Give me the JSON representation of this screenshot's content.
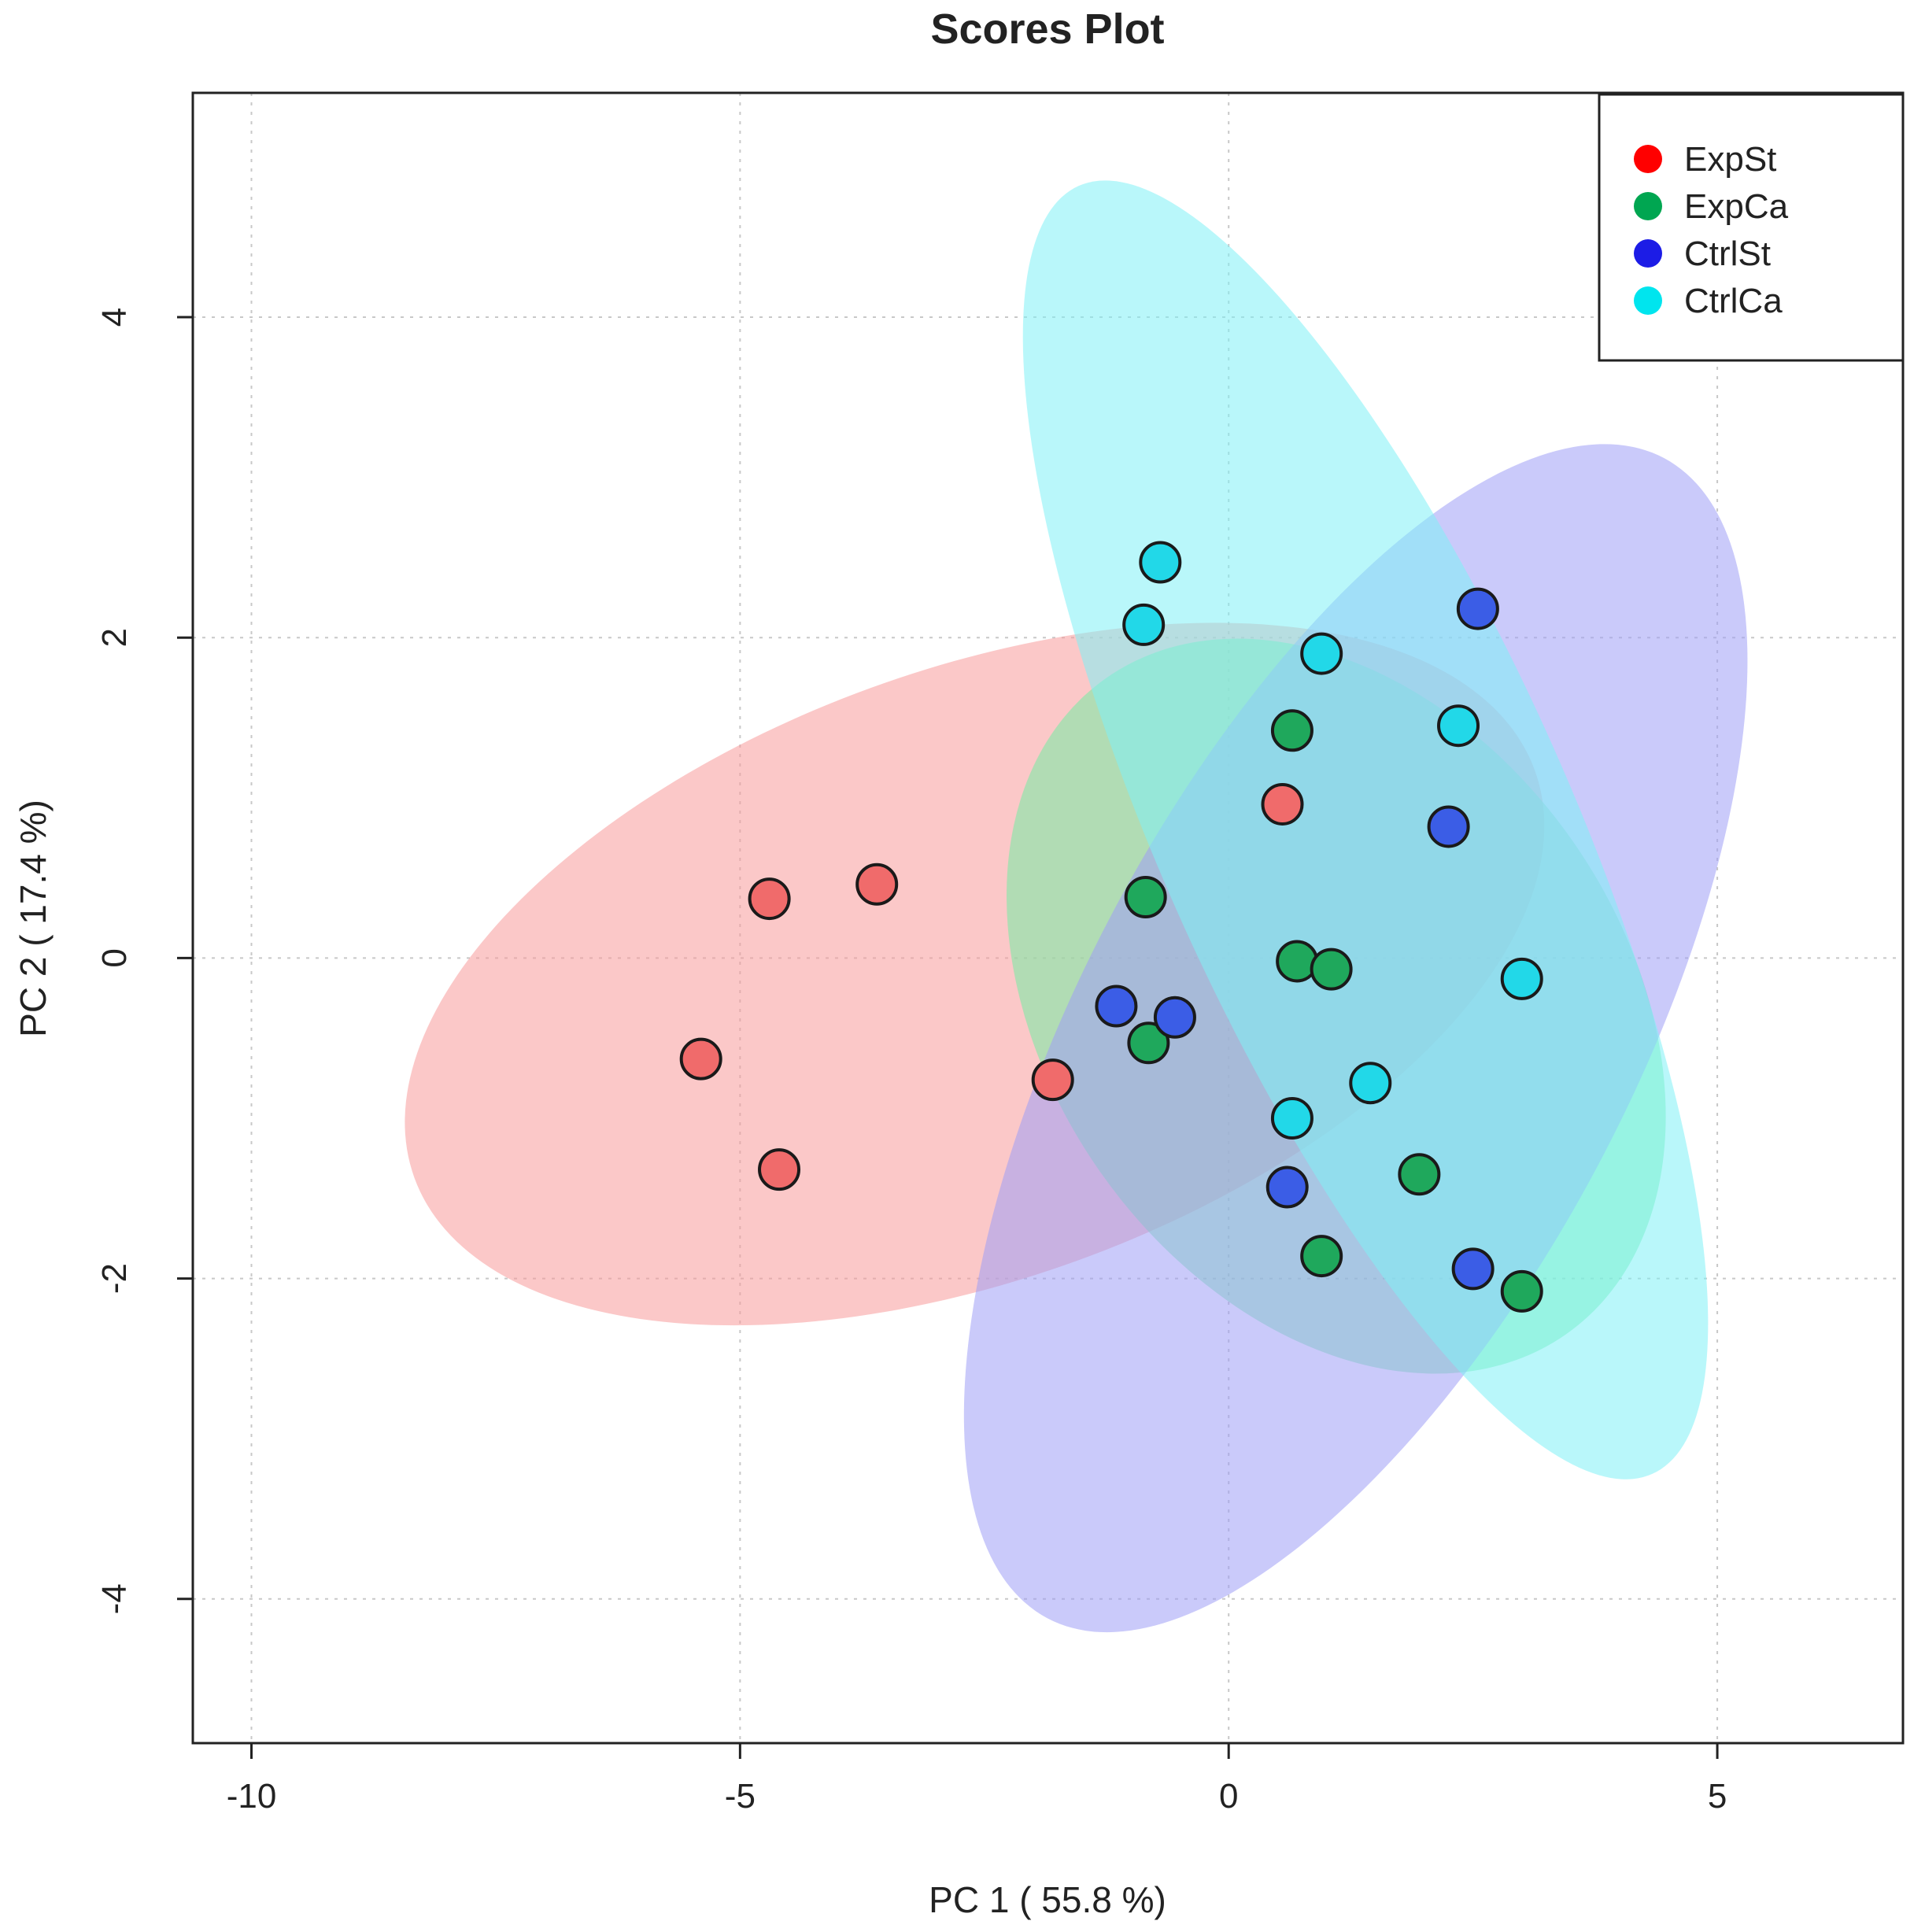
{
  "chart_data": {
    "type": "scatter",
    "title": "Scores Plot",
    "xlabel": "PC 1 ( 55.8 %)",
    "ylabel": "PC 2 ( 17.4 %)",
    "xlim": [
      -10.6,
      6.9
    ],
    "ylim": [
      -4.9,
      5.4
    ],
    "xticks": [
      -10,
      -5,
      0,
      5
    ],
    "yticks": [
      -4,
      -2,
      0,
      2,
      4
    ],
    "xtick_labels": [
      "-10",
      "-5",
      "0",
      "5"
    ],
    "ytick_labels": [
      "-4",
      "-2",
      "0",
      "2",
      "4"
    ],
    "grid": true,
    "legend_position": "top-right",
    "series": [
      {
        "name": "ExpSt",
        "color": "#ff0000",
        "point_color": "#f06b6b",
        "ellipse_color": "#f79b9b",
        "points": [
          [
            -4.7,
            0.37
          ],
          [
            -3.6,
            0.46
          ],
          [
            -5.4,
            -0.63
          ],
          [
            -4.6,
            -1.32
          ],
          [
            -1.8,
            -0.76
          ],
          [
            0.55,
            0.96
          ]
        ],
        "ellipse": {
          "cx": -2.6,
          "cy": -0.1,
          "rx": 6.1,
          "ry": 1.9,
          "angle": 20
        }
      },
      {
        "name": "ExpCa",
        "color": "#00a651",
        "point_color": "#1fa85c",
        "ellipse_color": "#74eda4",
        "points": [
          [
            0.65,
            1.42
          ],
          [
            -0.85,
            0.38
          ],
          [
            0.7,
            -0.02
          ],
          [
            1.05,
            -0.07
          ],
          [
            -0.82,
            -0.53
          ],
          [
            1.95,
            -1.35
          ],
          [
            0.95,
            -1.86
          ],
          [
            3.0,
            -2.08
          ]
        ],
        "ellipse": {
          "cx": 1.1,
          "cy": -0.3,
          "rx": 4.1,
          "ry": 1.8,
          "angle": -55
        }
      },
      {
        "name": "CtrlSt",
        "color": "#1c1ce6",
        "point_color": "#3b5de6",
        "ellipse_color": "#9f9ff5",
        "points": [
          [
            2.55,
            2.18
          ],
          [
            2.25,
            0.82
          ],
          [
            -1.15,
            -0.3
          ],
          [
            -0.55,
            -0.37
          ],
          [
            0.6,
            -1.43
          ],
          [
            2.5,
            -1.94
          ]
        ],
        "ellipse": {
          "cx": 1.3,
          "cy": -0.5,
          "rx": 2.8,
          "ry": 4.1,
          "angle": -28
        }
      },
      {
        "name": "CtrlCa",
        "color": "#00e5ee",
        "point_color": "#22d8e8",
        "ellipse_color": "#7ff0f5",
        "points": [
          [
            -0.7,
            2.47
          ],
          [
            -0.87,
            2.08
          ],
          [
            0.95,
            1.9
          ],
          [
            2.35,
            1.45
          ],
          [
            3.0,
            -0.13
          ],
          [
            1.45,
            -0.78
          ],
          [
            0.65,
            -1.0
          ]
        ],
        "ellipse": {
          "cx": 1.4,
          "cy": 0.8,
          "rx": 2.1,
          "ry": 4.4,
          "angle": 24
        }
      }
    ]
  }
}
